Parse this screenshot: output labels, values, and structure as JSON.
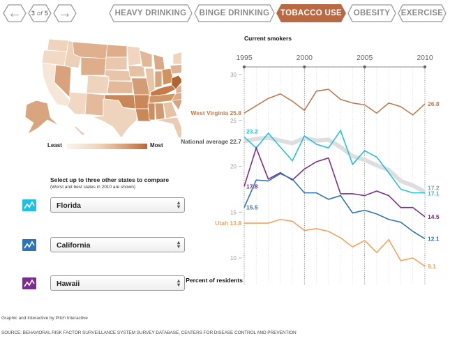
{
  "nav": {
    "prev_icon": "arrow-left-icon",
    "next_icon": "arrow-right-icon",
    "page_indicator": {
      "current": "3",
      "of": "of",
      "total": "5"
    },
    "tabs": [
      {
        "label": "HEAVY DRINKING",
        "active": false
      },
      {
        "label": "BINGE DRINKING",
        "active": false
      },
      {
        "label": "TOBACCO USE",
        "active": true
      },
      {
        "label": "OBESITY",
        "active": false
      },
      {
        "label": "EXERCISE",
        "active": false
      }
    ],
    "active_color": "#b96a42",
    "inactive_border": "#9a9a9a"
  },
  "map": {
    "legend_least": "Least",
    "legend_most": "Most",
    "scale_colors": [
      "#fbf3ec",
      "#efd4bd",
      "#d39b72",
      "#b9683d"
    ],
    "highlight_state": "West Virginia",
    "blank_state": "Utah"
  },
  "compare": {
    "title": "Select up to three other states to compare",
    "subtitle": "(Worst and best states in 2010 are shown)",
    "selectors": [
      {
        "value": "Florida",
        "color": "#1ec2e0",
        "icon": "line-chart-icon"
      },
      {
        "value": "California",
        "color": "#2d74b5",
        "icon": "line-chart-icon"
      },
      {
        "value": "Hawaii",
        "color": "#7b2d8e",
        "icon": "line-chart-icon"
      }
    ]
  },
  "chart_data": {
    "type": "line",
    "title": "Current smokers",
    "xlabel": "",
    "ylabel": "Percent of residents",
    "x": [
      1995,
      1996,
      1997,
      1998,
      1999,
      2000,
      2001,
      2002,
      2003,
      2004,
      2005,
      2006,
      2007,
      2008,
      2009,
      2010
    ],
    "x_ticks": [
      "1995",
      "2000",
      "2005",
      "2010"
    ],
    "y_ticks": [
      "30",
      "25",
      "20",
      "15",
      "10"
    ],
    "xlim": [
      1995,
      2010
    ],
    "ylim": [
      8.5,
      30
    ],
    "grid": "vertical dotted lines per year",
    "series": [
      {
        "name": "National average",
        "color": "#dedede",
        "start_label": "National average 22.7",
        "end_label": "17.2",
        "values": [
          22.7,
          23.0,
          23.1,
          22.8,
          22.5,
          23.1,
          22.8,
          22.9,
          22.1,
          21.1,
          20.7,
          20.1,
          19.6,
          18.4,
          17.9,
          17.2
        ]
      },
      {
        "name": "West Virginia",
        "color": "#c27a4c",
        "start_label": "West Virginia 25.8",
        "end_label": "26.8",
        "values": [
          25.8,
          26.6,
          27.4,
          27.9,
          27.1,
          26.1,
          28.2,
          28.4,
          27.3,
          26.9,
          26.7,
          25.8,
          26.9,
          26.5,
          25.6,
          26.8
        ]
      },
      {
        "name": "Florida",
        "color": "#1ec2e0",
        "start_label": "23.2",
        "end_label": "17.1",
        "values": [
          23.2,
          22.0,
          23.6,
          22.1,
          20.6,
          23.3,
          22.4,
          22.0,
          23.9,
          20.2,
          21.7,
          21.0,
          19.3,
          17.5,
          17.1,
          17.1
        ]
      },
      {
        "name": "Hawaii",
        "color": "#7b2d8e",
        "start_label": "17.8",
        "end_label": "14.5",
        "values": [
          17.8,
          22.0,
          18.6,
          19.3,
          18.5,
          19.7,
          20.5,
          20.9,
          17.0,
          17.0,
          16.8,
          17.3,
          16.8,
          15.5,
          15.5,
          14.5
        ]
      },
      {
        "name": "California",
        "color": "#2d74b5",
        "start_label": "15.5",
        "end_label": "12.1",
        "values": [
          15.5,
          18.5,
          18.4,
          19.2,
          18.6,
          17.1,
          17.1,
          16.4,
          16.8,
          14.9,
          15.2,
          14.8,
          14.2,
          13.9,
          12.9,
          12.1
        ]
      },
      {
        "name": "Utah",
        "color": "#f6a15c",
        "start_label": "Utah 13.8",
        "end_label": "9.1",
        "values": [
          13.8,
          13.8,
          13.8,
          14.2,
          14.0,
          13.0,
          13.2,
          12.9,
          12.2,
          11.2,
          11.9,
          10.6,
          12.0,
          9.7,
          10.0,
          9.1
        ]
      }
    ]
  },
  "footer": {
    "credit": "Graphic and Interactive by Pitch Interactive",
    "source": "SOURCE: BEHAVIORAL RISK FACTOR SURVEILLANCE SYSTEM SURVEY DATABASE, CENTERS FOR DISEASE CONTROL AND PREVENTION"
  }
}
